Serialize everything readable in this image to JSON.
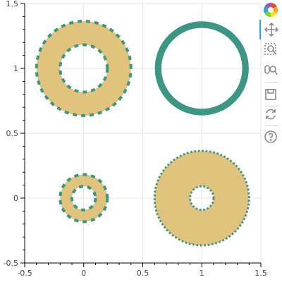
{
  "chart_data": {
    "type": "annular_wedge",
    "xlim": [
      -0.5,
      1.5
    ],
    "ylim": [
      -0.5,
      1.5
    ],
    "x_ticks": [
      -0.5,
      0,
      0.5,
      1,
      1.5
    ],
    "y_ticks": [
      -0.5,
      0,
      0.5,
      1,
      1.5
    ],
    "x_tick_labels": [
      "-0.5",
      "0",
      "0.5",
      "1",
      "1.5"
    ],
    "y_tick_labels": [
      "-0.5",
      "0",
      "0.5",
      "1",
      "1.5"
    ],
    "grid": true,
    "fill_color": "#e0c47d",
    "line_color": "#3b9683",
    "annuli": [
      {
        "x": 0,
        "y": 1,
        "inner_radius": 0.2,
        "outer_radius": 0.4,
        "line_dash": "dashed",
        "line_width": 4
      },
      {
        "x": 1,
        "y": 1,
        "inner_radius": 0.36,
        "outer_radius": 0.38,
        "line_dash": "solid",
        "line_width": 6
      },
      {
        "x": 0,
        "y": 0,
        "inner_radius": 0.1,
        "outer_radius": 0.2,
        "line_dash": "dashed",
        "line_width": 4
      },
      {
        "x": 1,
        "y": 0,
        "inner_radius": 0.1,
        "outer_radius": 0.4,
        "line_dash": "dotted",
        "line_width": 3
      }
    ]
  },
  "toolbar": {
    "tools": [
      {
        "name": "bokeh-logo-icon",
        "interactable": false,
        "active": false
      },
      {
        "name": "pan-tool-icon",
        "interactable": true,
        "active": true
      },
      {
        "name": "box-zoom-tool-icon",
        "interactable": true,
        "active": false
      },
      {
        "name": "wheel-zoom-tool-icon",
        "interactable": true,
        "active": false
      },
      {
        "name": "save-tool-icon",
        "interactable": true,
        "active": false
      },
      {
        "name": "reset-tool-icon",
        "interactable": true,
        "active": false
      },
      {
        "name": "help-tool-icon",
        "interactable": true,
        "active": false
      }
    ]
  }
}
